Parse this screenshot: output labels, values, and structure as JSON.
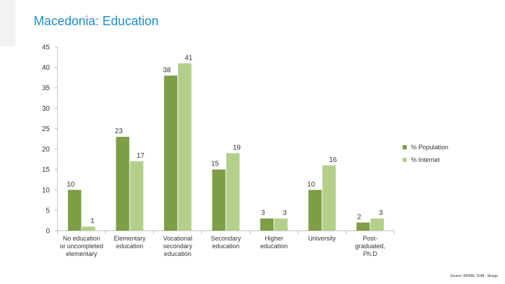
{
  "slide": {
    "title": "Macedonia: Education",
    "source": "Source: BRIMA, 2008 - Skopje"
  },
  "colors": {
    "population": "#7e9e45",
    "internet": "#b3cf8a",
    "title": "#1e8ccf",
    "axis": "#bfbfbf"
  },
  "chart_data": {
    "type": "bar",
    "title": "",
    "xlabel": "",
    "ylabel": "",
    "ylim": [
      0,
      45
    ],
    "yticks": [
      0,
      5,
      10,
      15,
      20,
      25,
      30,
      35,
      40,
      45
    ],
    "grid": false,
    "legend_position": "right",
    "categories": [
      [
        "No education",
        "or uncompleted",
        "elementary"
      ],
      [
        "Elementary",
        "education"
      ],
      [
        "Vocational",
        "secondary",
        "education"
      ],
      [
        "Secondary",
        "education"
      ],
      [
        "Higher",
        "education"
      ],
      [
        "University"
      ],
      [
        "Post-",
        "graduated,",
        "Ph.D"
      ]
    ],
    "series": [
      {
        "name": "% Population",
        "values": [
          10,
          23,
          38,
          15,
          3,
          10,
          2
        ]
      },
      {
        "name": "% Internet",
        "values": [
          1,
          17,
          41,
          19,
          3,
          16,
          3
        ]
      }
    ]
  }
}
